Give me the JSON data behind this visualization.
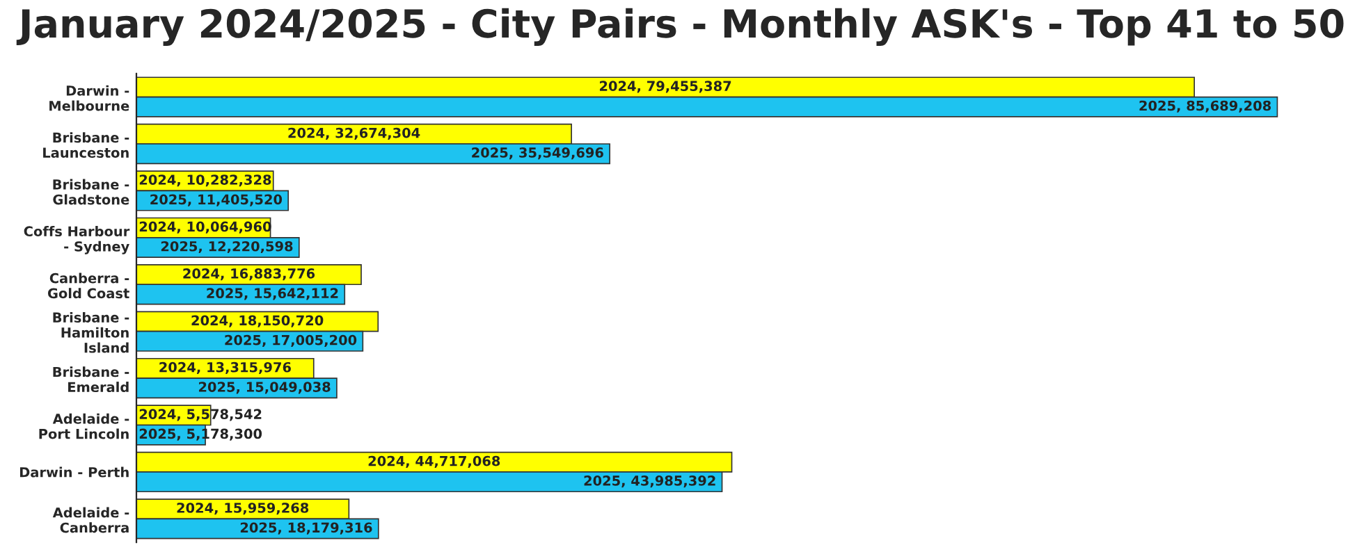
{
  "chart_data": {
    "type": "bar",
    "orientation": "horizontal",
    "title": "January 2024/2025 - City Pairs - Monthly ASK's - Top 41 to 50",
    "categories": [
      "Darwin -\nMelbourne",
      "Brisbane -\nLaunceston",
      "Brisbane -\nGladstone",
      "Coffs Harbour\n- Sydney",
      "Canberra -\nGold Coast",
      "Brisbane -\nHamilton\nIsland",
      "Brisbane -\nEmerald",
      "Adelaide -\nPort Lincoln",
      "Darwin - Perth",
      "Adelaide -\nCanberra"
    ],
    "series": [
      {
        "color": "#ffff00",
        "values": [
          79455387,
          32674304,
          10282328,
          10064960,
          16883776,
          18150720,
          13315976,
          5578542,
          44717068,
          15959268
        ],
        "value_labels": [
          "2024, 79,455,387",
          "2024, 32,674,304",
          "2024, 10,282,328",
          "2024, 10,064,960",
          "2024, 16,883,776",
          "2024, 18,150,720",
          "2024, 13,315,976",
          "2024, 5,578,542",
          "2024, 44,717,068",
          "2024, 15,959,268"
        ]
      },
      {
        "color": "#1ec3f0",
        "values": [
          85689208,
          35549696,
          11405520,
          12220598,
          15642112,
          17005200,
          15049038,
          5178300,
          43985392,
          18179316
        ],
        "value_labels": [
          "2025, 85,689,208",
          "2025, 35,549,696",
          "2025, 11,405,520",
          "2025, 12,220,598",
          "2025, 15,642,112",
          "2025, 17,005,200",
          "2025, 15,049,038",
          "2025, 5,178,300",
          "2025, 43,985,392",
          "2025, 18,179,316"
        ]
      }
    ],
    "legend": false
  }
}
